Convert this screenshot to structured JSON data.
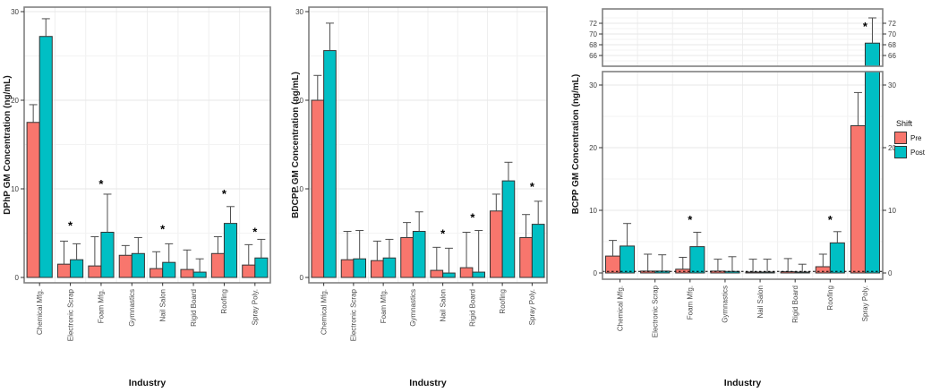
{
  "figure": {
    "description": "Grouped bar charts of urinary metabolite geometric mean concentrations by industry, pre-shift vs post-shift",
    "background": "#ffffff"
  },
  "legend": {
    "title": "Shift",
    "items": [
      {
        "label": "Pre",
        "color": "#F8766D"
      },
      {
        "label": "Post",
        "color": "#00BFC4"
      }
    ]
  },
  "styles": {
    "bar_stroke": "#333333",
    "error_bar_color": "#4d4d4d",
    "panel_border": "#808080",
    "grid_major": "#e7e7e7",
    "grid_minor": "#f3f3f3",
    "grid_vertical": "#efefef",
    "tick_text": "#404040",
    "category_text": "#4d4d4d",
    "axis_title": "#1a1a1a",
    "asterisk": "#000000"
  },
  "chart_data": [
    {
      "id": "dphp",
      "type": "bar",
      "ylabel": "DPhP GM Concentration (ng/mL)",
      "xlabel": "Industry",
      "categories": [
        "Chemical Mfg.",
        "Electronic Scrap",
        "Foam Mfg.",
        "Gymnastics",
        "Nail Salon",
        "Rigid Board",
        "Roofing",
        "Spray Poly."
      ],
      "ylim": [
        0,
        30
      ],
      "yticks": [
        0,
        10,
        20,
        30
      ],
      "yticks_minor": [
        5,
        15,
        25
      ],
      "grid": true,
      "series": [
        {
          "name": "Pre",
          "color": "#F8766D",
          "values": [
            17.5,
            1.5,
            1.3,
            2.5,
            1.0,
            0.9,
            2.7,
            1.4
          ],
          "error_upper": [
            19.5,
            4.1,
            4.6,
            3.6,
            2.9,
            3.1,
            4.6,
            3.7
          ]
        },
        {
          "name": "Post",
          "color": "#00BFC4",
          "values": [
            27.2,
            2.0,
            5.1,
            2.7,
            1.7,
            0.6,
            6.1,
            2.2
          ],
          "error_upper": [
            29.2,
            3.8,
            9.4,
            4.5,
            3.8,
            2.1,
            8.0,
            4.3
          ]
        }
      ],
      "significance_marks": [
        {
          "category": "Electronic Scrap",
          "y": 5.9
        },
        {
          "category": "Foam Mfg.",
          "y": 10.6
        },
        {
          "category": "Nail Salon",
          "y": 5.5
        },
        {
          "category": "Roofing",
          "y": 9.5
        },
        {
          "category": "Spray Poly.",
          "y": 5.2
        }
      ]
    },
    {
      "id": "bdcpp",
      "type": "bar",
      "ylabel": "BDCPP GM Concentration (ng/mL)",
      "xlabel": "Industry",
      "categories": [
        "Chemical Mfg.",
        "Electronic Scrap",
        "Foam Mfg.",
        "Gymnastics",
        "Nail Salon",
        "Rigid Board",
        "Roofing",
        "Spray Poly."
      ],
      "ylim": [
        0,
        30
      ],
      "yticks": [
        0,
        10,
        20,
        30
      ],
      "yticks_minor": [
        5,
        15,
        25
      ],
      "grid": true,
      "series": [
        {
          "name": "Pre",
          "color": "#F8766D",
          "values": [
            20.0,
            2.0,
            1.9,
            4.5,
            0.8,
            1.1,
            7.5,
            4.5
          ],
          "error_upper": [
            22.8,
            5.2,
            4.1,
            6.2,
            3.4,
            5.1,
            9.4,
            7.1
          ]
        },
        {
          "name": "Post",
          "color": "#00BFC4",
          "values": [
            25.6,
            2.1,
            2.2,
            5.2,
            0.5,
            0.6,
            10.9,
            6.0
          ],
          "error_upper": [
            28.7,
            5.3,
            4.3,
            7.4,
            3.3,
            5.3,
            13.0,
            8.6
          ]
        }
      ],
      "significance_marks": [
        {
          "category": "Nail Salon",
          "y": 5.0
        },
        {
          "category": "Rigid Board",
          "y": 6.8
        },
        {
          "category": "Spray Poly.",
          "y": 10.3
        }
      ]
    },
    {
      "id": "bcpp",
      "type": "bar",
      "broken_axis": true,
      "ylabel": "BCPP GM Concentration (ng/mL)",
      "xlabel": "Industry",
      "categories": [
        "Chemical Mfg.",
        "Electronic Scrap",
        "Foam Mfg.",
        "Gymnastics",
        "Nail Salon",
        "Rigid Board",
        "Roofing",
        "Spray Poly."
      ],
      "axis_panels": {
        "upper": {
          "ylim": [
            64,
            74
          ],
          "yticks": [
            66,
            68,
            70,
            72
          ],
          "yticks_minor": [
            65,
            67,
            69,
            71,
            73
          ]
        },
        "lower": {
          "ylim": [
            0,
            32
          ],
          "yticks": [
            0,
            10,
            20,
            30
          ],
          "yticks_minor": [
            5,
            15,
            25
          ]
        }
      },
      "right_axis_ticks": true,
      "reference_line": {
        "y": 0.25,
        "style": "dashed",
        "color": "#000000"
      },
      "grid": true,
      "series": [
        {
          "name": "Pre",
          "color": "#F8766D",
          "values": [
            2.7,
            0.3,
            0.6,
            0.3,
            0.15,
            0.2,
            1.0,
            23.5
          ],
          "error_upper": [
            5.2,
            3.0,
            2.5,
            2.2,
            2.2,
            2.3,
            3.0,
            28.8
          ]
        },
        {
          "name": "Post",
          "color": "#00BFC4",
          "values": [
            4.3,
            0.3,
            4.2,
            0.25,
            0.15,
            0.15,
            4.8,
            68.3
          ],
          "error_upper": [
            7.9,
            2.9,
            6.5,
            2.6,
            2.2,
            1.4,
            6.6,
            73.0
          ]
        }
      ],
      "significance_marks": [
        {
          "category": "Foam Mfg.",
          "y": 8.6,
          "panel": "lower"
        },
        {
          "category": "Roofing",
          "y": 8.6,
          "panel": "lower"
        },
        {
          "category": "Spray Poly.",
          "y": 71.5,
          "panel": "upper"
        }
      ]
    }
  ]
}
